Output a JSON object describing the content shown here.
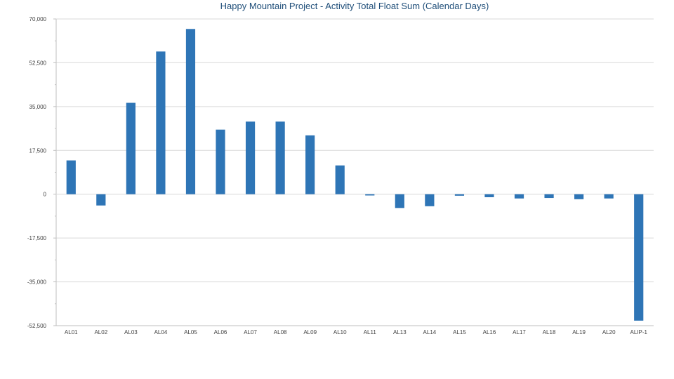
{
  "chart_data": {
    "type": "bar",
    "title": "Happy Mountain Project - Activity Total Float Sum (Calendar Days)",
    "xlabel": "",
    "ylabel": "",
    "ylim": [
      -52500,
      70000
    ],
    "yticks": [
      70000,
      52500,
      35000,
      17500,
      0,
      -17500,
      -35000,
      -52500
    ],
    "ytick_labels": [
      "70,000",
      "52,500",
      "35,000",
      "17,500",
      "0",
      "-17,500",
      "-35,000",
      "-52,500"
    ],
    "grid": true,
    "legend": "none",
    "bar_color": "#2e75b6",
    "categories": [
      "AL01",
      "AL02",
      "AL03",
      "AL04",
      "AL05",
      "AL06",
      "AL07",
      "AL08",
      "AL09",
      "AL10",
      "AL11",
      "AL13",
      "AL14",
      "AL15",
      "AL16",
      "AL17",
      "AL18",
      "AL19",
      "AL20",
      "ALIP-1"
    ],
    "values": [
      13500,
      -4500,
      36500,
      57000,
      66000,
      25800,
      29000,
      29000,
      23500,
      11500,
      -500,
      -5500,
      -4800,
      -600,
      -1200,
      -1700,
      -1500,
      -2000,
      -1700,
      -50500
    ]
  }
}
